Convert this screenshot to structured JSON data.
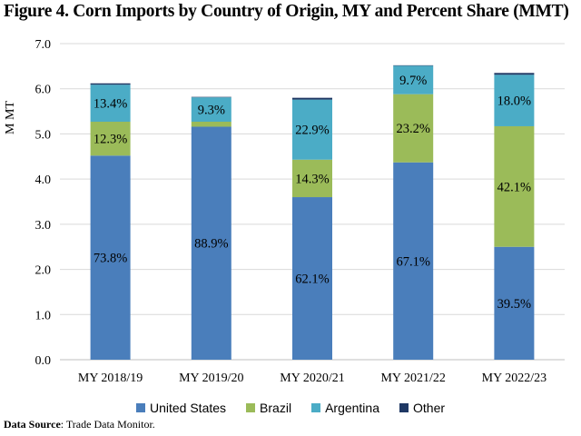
{
  "chart_data": {
    "type": "bar",
    "stacked": true,
    "title": "Figure 4. Corn Imports by Country of Origin, MY and Percent Share (MMT)",
    "ylabel": "M MT",
    "xlabel": "",
    "ylim": [
      0,
      7
    ],
    "yticks": [
      "0.0",
      "1.0",
      "2.0",
      "3.0",
      "4.0",
      "5.0",
      "6.0",
      "7.0"
    ],
    "grid": true,
    "legend_position": "bottom",
    "categories": [
      "MY 2018/19",
      "MY 2019/20",
      "MY 2020/21",
      "MY 2021/22",
      "MY 2022/23"
    ],
    "series": [
      {
        "name": "United States",
        "color": "#4a7ebb",
        "values": [
          4.52,
          5.16,
          3.6,
          4.37,
          2.5
        ],
        "labels": [
          "73.8%",
          "88.9%",
          "62.1%",
          "67.1%",
          "39.5%"
        ]
      },
      {
        "name": "Brazil",
        "color": "#9bbb59",
        "values": [
          0.75,
          0.11,
          0.83,
          1.51,
          2.67
        ],
        "labels": [
          "12.3%",
          "",
          "14.3%",
          "23.2%",
          "42.1%"
        ]
      },
      {
        "name": "Argentina",
        "color": "#4bacc6",
        "values": [
          0.82,
          0.54,
          1.33,
          0.63,
          1.14
        ],
        "labels": [
          "13.4%",
          "9.3%",
          "22.9%",
          "9.7%",
          "18.0%"
        ]
      },
      {
        "name": "Other",
        "color": "#1f3864",
        "values": [
          0.03,
          0.01,
          0.04,
          0.01,
          0.04
        ],
        "labels": [
          "",
          "",
          "",
          "",
          ""
        ]
      }
    ]
  },
  "source": {
    "label": "Data Source",
    "text": ": Trade Data Monitor."
  }
}
